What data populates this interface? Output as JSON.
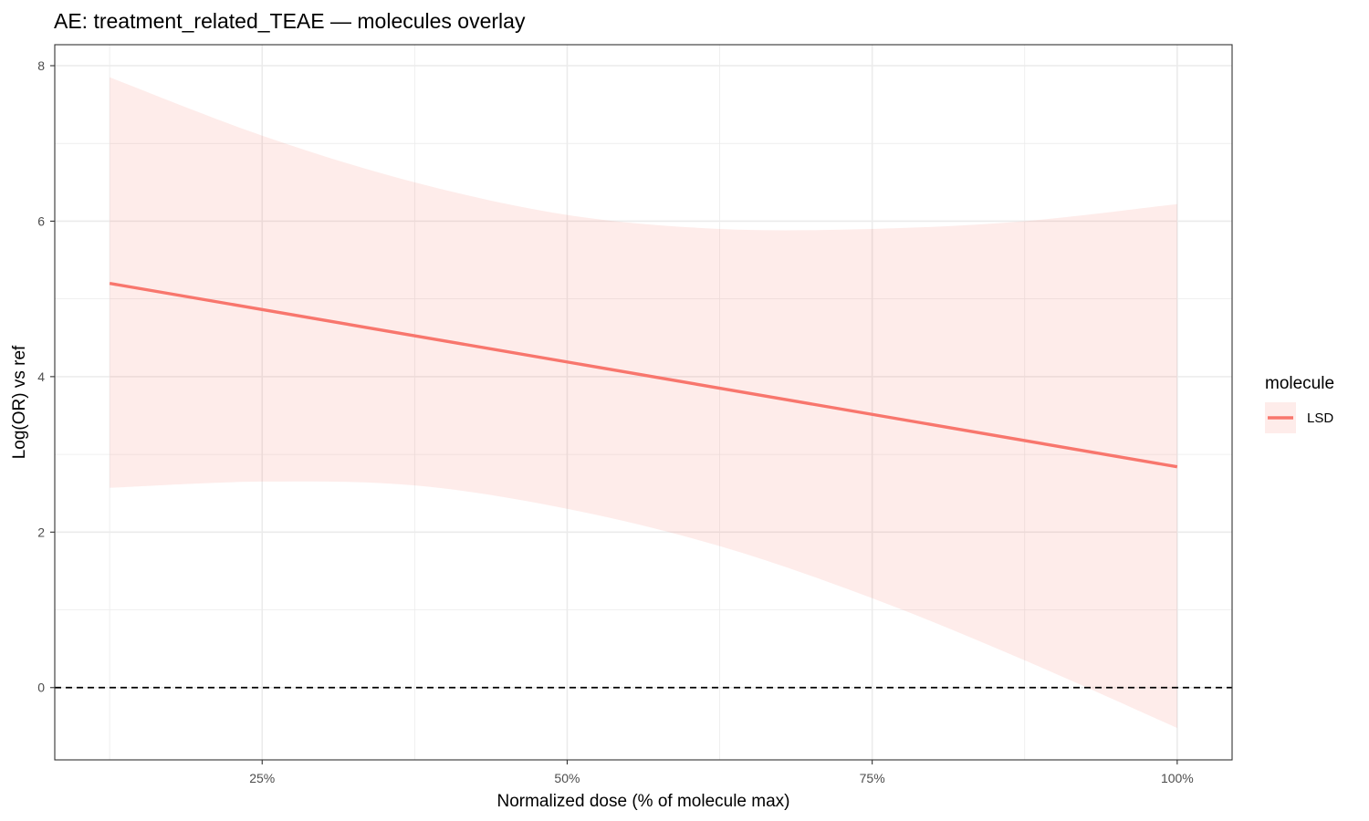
{
  "chart_data": {
    "type": "line",
    "title": "AE: treatment_related_TEAE — molecules overlay",
    "xlabel": "Normalized dose (% of molecule max)",
    "ylabel": "Log(OR) vs ref",
    "xlim": [
      0.08,
      1.045
    ],
    "ylim": [
      -0.93,
      8.27
    ],
    "x_ticks": [
      0.25,
      0.5,
      0.75,
      1.0
    ],
    "x_tick_labels": [
      "25%",
      "50%",
      "75%",
      "100%"
    ],
    "y_ticks": [
      0,
      2,
      4,
      6,
      8
    ],
    "y_tick_labels": [
      "0",
      "2",
      "4",
      "6",
      "8"
    ],
    "grid": true,
    "legend": {
      "title": "molecule",
      "placement": "right"
    },
    "reference_line": {
      "y": 0,
      "style": "dashed"
    },
    "series": [
      {
        "name": "LSD",
        "color": "#F8766D",
        "x": [
          0.125,
          1.0
        ],
        "values": [
          5.2,
          2.84
        ],
        "ribbon": {
          "x": [
            0.125,
            0.25,
            0.375,
            0.5,
            0.625,
            0.75,
            0.875,
            1.0
          ],
          "upper": [
            7.85,
            7.1,
            6.5,
            6.08,
            5.9,
            5.9,
            6.0,
            6.22
          ],
          "lower": [
            2.57,
            2.65,
            2.6,
            2.3,
            1.82,
            1.15,
            0.35,
            -0.52
          ]
        }
      }
    ]
  }
}
